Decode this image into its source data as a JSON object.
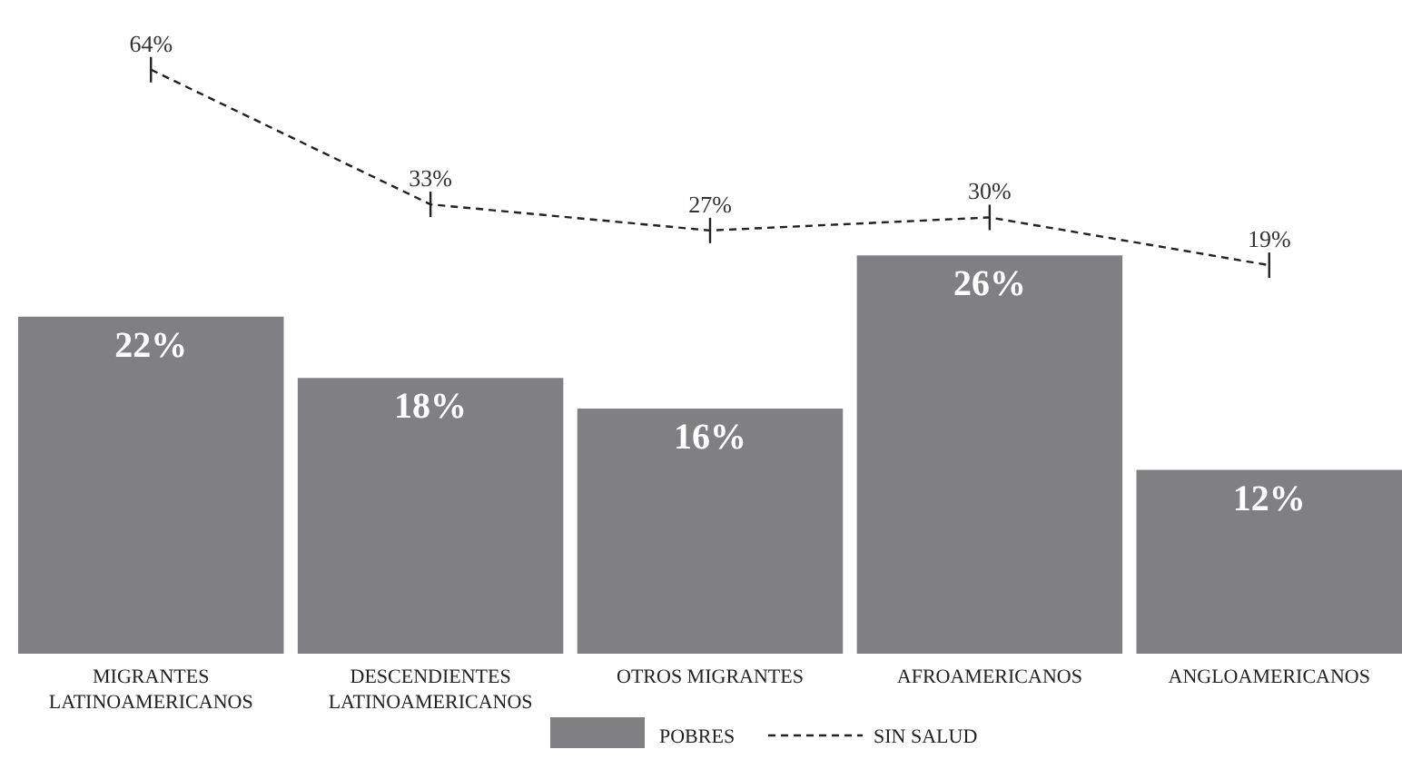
{
  "chart_data": {
    "type": "bar",
    "categories": [
      "MIGRANTES LATINOAMERICANOS",
      "DESCENDIENTES LATINOAMERICANOS",
      "OTROS MIGRANTES",
      "AFROAMERICANOS",
      "ANGLOAMERICANOS"
    ],
    "series": [
      {
        "name": "POBRES",
        "color": "#808083",
        "values": [
          22,
          18,
          16,
          26,
          12
        ],
        "value_labels": [
          "22%",
          "18%",
          "16%",
          "26%",
          "12%"
        ]
      },
      {
        "name": "SIN SALUD",
        "type": "line",
        "axis": "y2",
        "color": "#222222",
        "line_style": "dashed",
        "values": [
          64,
          33,
          27,
          30,
          19
        ],
        "value_labels": [
          "64%",
          "33%",
          "27%",
          "30%",
          "19%"
        ]
      }
    ],
    "legend": "bottom"
  }
}
